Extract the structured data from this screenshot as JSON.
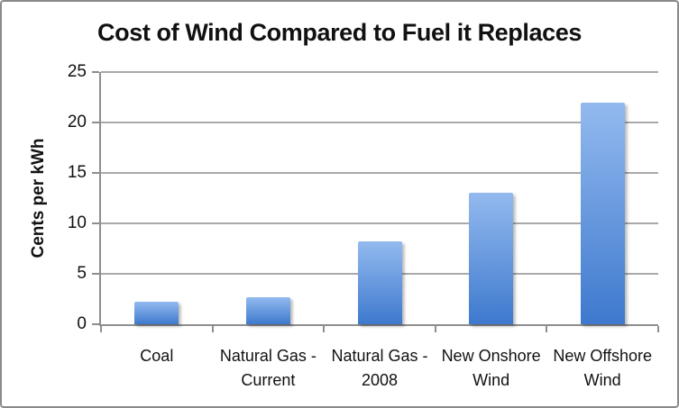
{
  "chart_data": {
    "type": "bar",
    "title": "Cost of Wind Compared to Fuel it Replaces",
    "xlabel": "",
    "ylabel": "Cents per kWh",
    "categories": [
      "Coal",
      "Natural Gas - Current",
      "Natural Gas - 2008",
      "New Onshore Wind",
      "New Offshore Wind"
    ],
    "values": [
      2.2,
      2.7,
      8.2,
      13,
      22
    ],
    "ylim": [
      0,
      25
    ],
    "yticks": [
      0,
      5,
      10,
      15,
      20,
      25
    ],
    "grid": true,
    "legend": false,
    "colors": {
      "bar_gradient_top": "#93BAEF",
      "bar_gradient_bottom": "#3E79CE",
      "axis_line": "#8E8E8E",
      "gridline": "#A9A9A9",
      "text": "#111111",
      "background": "#FFFFFF",
      "frame_border": "#8A8A8A"
    }
  }
}
